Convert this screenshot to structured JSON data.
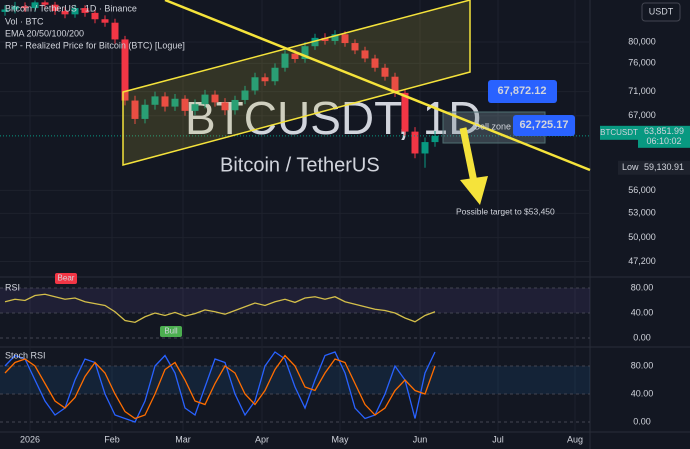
{
  "chart_data": [
    {
      "type": "candlestick",
      "title": "Bitcoin / TetherUS · 1D · Binance",
      "indicators": [
        "Vol · BTC",
        "EMA 20/50/100/200",
        "RP - Realized Price for Bitcoin (BTC) [Logue]"
      ],
      "watermark": [
        "BTCUSDT, 1D",
        "Bitcoin / TetherUS"
      ],
      "currency": "USDT",
      "x_labels": [
        "2026",
        "Feb",
        "Mar",
        "Apr",
        "May",
        "Jun",
        "Jul",
        "Aug"
      ],
      "log_scale": true,
      "grid": true,
      "up_color": "#089981",
      "down_color": "#f23645",
      "ylim": [
        45700,
        88500
      ],
      "yticks": [
        {
          "value": 47200,
          "label": "47,200"
        },
        {
          "value": 50000,
          "label": "50,000"
        },
        {
          "value": 53000,
          "label": "53,000"
        },
        {
          "value": 56000,
          "label": "56,000"
        },
        {
          "value": 67000,
          "label": "67,000"
        },
        {
          "value": 71000,
          "label": "71,000"
        },
        {
          "value": 76000,
          "label": "76,000"
        },
        {
          "value": 80000,
          "label": "80,000"
        }
      ],
      "open": [
        86000,
        86500,
        87200,
        86800,
        88000,
        87500,
        86200,
        85500,
        86800,
        85800,
        84500,
        83800,
        80500,
        69500,
        66500,
        68800,
        70200,
        68500,
        69800,
        67800,
        68900,
        70500,
        69200,
        67900,
        69600,
        71200,
        73500,
        72800,
        75200,
        77800,
        76800,
        79200,
        80800,
        80200,
        81500,
        79800,
        78400,
        76900,
        75200,
        73600,
        70800,
        64500,
        61200,
        62900
      ],
      "high": [
        87400,
        88100,
        88000,
        88400,
        88400,
        88100,
        87000,
        87500,
        87400,
        86500,
        85300,
        84600,
        81200,
        70300,
        69700,
        71000,
        70900,
        70600,
        70400,
        69700,
        71300,
        71200,
        69900,
        70300,
        72000,
        74300,
        74200,
        76000,
        78600,
        78500,
        80000,
        81600,
        81700,
        82300,
        82100,
        80500,
        79100,
        77600,
        75900,
        74300,
        71400,
        65200,
        63600,
        64600
      ],
      "low": [
        85200,
        85700,
        86000,
        86000,
        86700,
        85400,
        84700,
        84800,
        85000,
        83700,
        83000,
        79700,
        68700,
        65700,
        65800,
        68000,
        67700,
        67800,
        67000,
        67100,
        68200,
        68500,
        67100,
        67200,
        68900,
        70500,
        72000,
        72100,
        74500,
        76100,
        76100,
        78500,
        79500,
        79500,
        79100,
        77700,
        76200,
        74500,
        72900,
        70100,
        63800,
        60500,
        59131,
        62200
      ],
      "close": [
        86500,
        87200,
        86800,
        88000,
        87500,
        86200,
        85500,
        86800,
        85800,
        84500,
        83800,
        80500,
        69500,
        66500,
        68800,
        70200,
        68500,
        69800,
        67800,
        68900,
        70500,
        69200,
        67900,
        69600,
        71200,
        73500,
        72800,
        75200,
        77800,
        76800,
        79200,
        80800,
        80200,
        81500,
        79800,
        78400,
        76900,
        75200,
        73600,
        70800,
        64500,
        61200,
        62900,
        63852
      ],
      "last_price": {
        "value": 63851.99,
        "label": "63,851.99"
      },
      "last_price_symbol": "BTCUSDT",
      "countdown": "06:10:02",
      "low_label": "Low",
      "low_price": {
        "value": 59130.91,
        "label": "59,130.91"
      },
      "price_callouts": [
        {
          "value": 67872.12,
          "label": "67,872.12"
        },
        {
          "value": 62725.17,
          "label": "62,725.17"
        }
      ],
      "annotations": [
        "Sell zone",
        "Possible target to $53,450"
      ]
    },
    {
      "type": "line",
      "title": "RSI",
      "annotations": [
        "Bear",
        "Bull"
      ],
      "ylim": [
        -11.2,
        92.8
      ],
      "yticks": [
        {
          "value": 0,
          "label": "0.00"
        },
        {
          "value": 40,
          "label": "40.00"
        },
        {
          "value": 80,
          "label": "80.00"
        }
      ],
      "series": [
        {
          "color": "#d4bf4a",
          "values": [
            58,
            62,
            60,
            68,
            70,
            66,
            62,
            64,
            58,
            55,
            52,
            42,
            28,
            25,
            34,
            40,
            36,
            41,
            35,
            39,
            45,
            42,
            38,
            44,
            50,
            56,
            52,
            58,
            62,
            57,
            64,
            66,
            62,
            66,
            58,
            54,
            50,
            46,
            44,
            40,
            32,
            26,
            36,
            42
          ]
        }
      ]
    },
    {
      "type": "line",
      "title": "Stoch RSI",
      "ylim": [
        -11.4,
        105.7
      ],
      "yticks": [
        {
          "value": 0,
          "label": "0.00"
        },
        {
          "value": 40,
          "label": "40.00"
        },
        {
          "value": 80,
          "label": "80.00"
        }
      ],
      "series": [
        {
          "color": "#2962ff",
          "values": [
            80,
            95,
            90,
            60,
            30,
            10,
            20,
            60,
            90,
            85,
            40,
            10,
            5,
            0,
            30,
            80,
            95,
            70,
            20,
            10,
            50,
            90,
            85,
            40,
            10,
            30,
            80,
            100,
            90,
            50,
            20,
            60,
            95,
            100,
            70,
            20,
            5,
            10,
            40,
            80,
            60,
            5,
            70,
            100
          ]
        },
        {
          "color": "#ff6d00",
          "values": [
            70,
            85,
            90,
            80,
            55,
            30,
            20,
            35,
            65,
            85,
            70,
            40,
            15,
            5,
            10,
            40,
            75,
            85,
            60,
            30,
            25,
            55,
            80,
            70,
            40,
            25,
            45,
            75,
            95,
            80,
            50,
            45,
            70,
            90,
            85,
            55,
            25,
            10,
            20,
            45,
            60,
            45,
            40,
            80
          ]
        }
      ]
    }
  ]
}
